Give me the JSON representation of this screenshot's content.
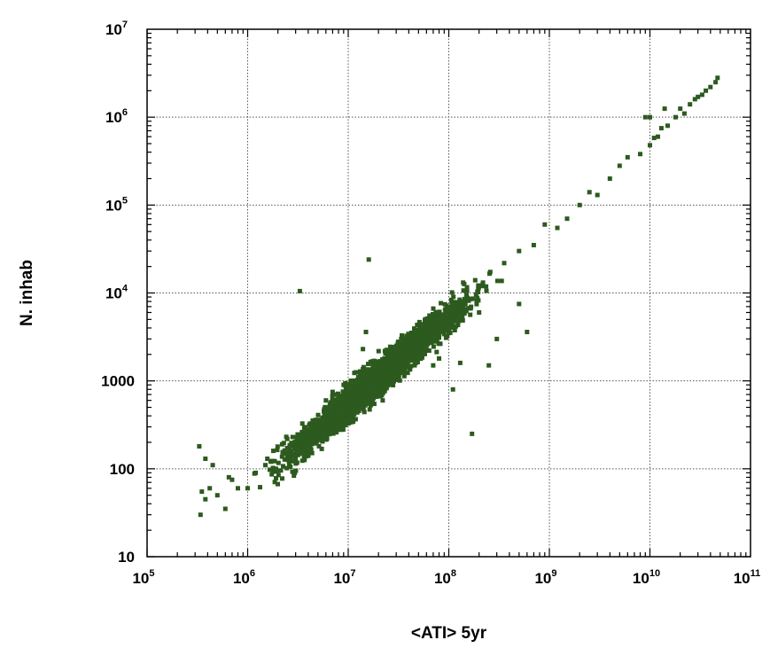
{
  "chart_data": {
    "type": "scatter",
    "title": "",
    "xlabel": "<ATI> 5yr",
    "ylabel": "N. inhab",
    "x_scale": "log",
    "y_scale": "log",
    "xlim": [
      100000,
      100000000000
    ],
    "ylim": [
      10,
      10000000
    ],
    "grid": true,
    "marker_color": "#2d5a1e",
    "x_ticks": [
      {
        "base": "10",
        "exp": "5"
      },
      {
        "base": "10",
        "exp": "6"
      },
      {
        "base": "10",
        "exp": "7"
      },
      {
        "base": "10",
        "exp": "8"
      },
      {
        "base": "10",
        "exp": "9"
      },
      {
        "base": "10",
        "exp": "10"
      },
      {
        "base": "10",
        "exp": "11"
      }
    ],
    "y_ticks": [
      {
        "base": "10",
        "exp": ""
      },
      {
        "base": "100",
        "exp": ""
      },
      {
        "base": "1000",
        "exp": ""
      },
      {
        "base": "10",
        "exp": "4"
      },
      {
        "base": "10",
        "exp": "5"
      },
      {
        "base": "10",
        "exp": "6"
      },
      {
        "base": "10",
        "exp": "7"
      }
    ],
    "trend": {
      "description": "points follow N ≈ 5.5e-5 · ATI with scatter",
      "x_range": [
        300000,
        50000000000
      ]
    },
    "points": [
      [
        340000,
        30
      ],
      [
        350000,
        55
      ],
      [
        380000,
        45
      ],
      [
        420000,
        60
      ],
      [
        500000,
        50
      ],
      [
        600000,
        35
      ],
      [
        330000,
        180
      ],
      [
        380000,
        130
      ],
      [
        450000,
        110
      ],
      [
        650000,
        80
      ],
      [
        700000,
        75
      ],
      [
        800000,
        60
      ],
      [
        1000000,
        60
      ],
      [
        1200000,
        90
      ],
      [
        1500000,
        110
      ],
      [
        1800000,
        160
      ],
      [
        2200000,
        190
      ],
      [
        2800000,
        230
      ],
      [
        3300000,
        10500
      ],
      [
        6000000,
        600
      ],
      [
        7000000,
        750
      ],
      [
        9000000,
        900
      ],
      [
        14000000,
        2300
      ],
      [
        15000000,
        3600
      ],
      [
        16000000,
        24000
      ],
      [
        20000000,
        700
      ],
      [
        20000000,
        800
      ],
      [
        22000000,
        600
      ],
      [
        28000000,
        1500
      ],
      [
        30000000,
        1200
      ],
      [
        45000000,
        3200
      ],
      [
        50000000,
        2800
      ],
      [
        60000000,
        4200
      ],
      [
        70000000,
        1500
      ],
      [
        80000000,
        1800
      ],
      [
        100000000,
        3500
      ],
      [
        110000000,
        800
      ],
      [
        130000000,
        1600
      ],
      [
        150000000,
        9500
      ],
      [
        200000000,
        6000
      ],
      [
        250000000,
        1500
      ],
      [
        170000000,
        250
      ],
      [
        300000000,
        3000
      ],
      [
        500000000,
        7500
      ],
      [
        600000000,
        3600
      ],
      [
        500000000,
        30000
      ],
      [
        700000000,
        35000
      ],
      [
        900000000,
        60000
      ],
      [
        1200000000,
        55000
      ],
      [
        1500000000,
        70000
      ],
      [
        2000000000,
        100000
      ],
      [
        2500000000,
        140000
      ],
      [
        3000000000,
        130000
      ],
      [
        4000000000,
        200000
      ],
      [
        5000000000,
        280000
      ],
      [
        6000000000,
        350000
      ],
      [
        8000000000,
        380000
      ],
      [
        10000000000,
        1000000
      ],
      [
        10000000000,
        480000
      ],
      [
        12000000000,
        600000
      ],
      [
        15000000000,
        800000
      ],
      [
        18000000000,
        1000000
      ],
      [
        20000000000,
        1250000
      ],
      [
        22000000000,
        1100000
      ],
      [
        25000000000,
        1400000
      ],
      [
        28000000000,
        1600000
      ],
      [
        30000000000,
        1700000
      ],
      [
        33000000000,
        1800000
      ],
      [
        36000000000,
        2000000
      ],
      [
        40000000000,
        2200000
      ],
      [
        45000000000,
        2500000
      ],
      [
        47000000000,
        2800000
      ],
      [
        14000000000,
        1250000
      ],
      [
        9000000000,
        1000000
      ],
      [
        13000000000,
        750000
      ],
      [
        11000000000,
        580000
      ]
    ]
  }
}
